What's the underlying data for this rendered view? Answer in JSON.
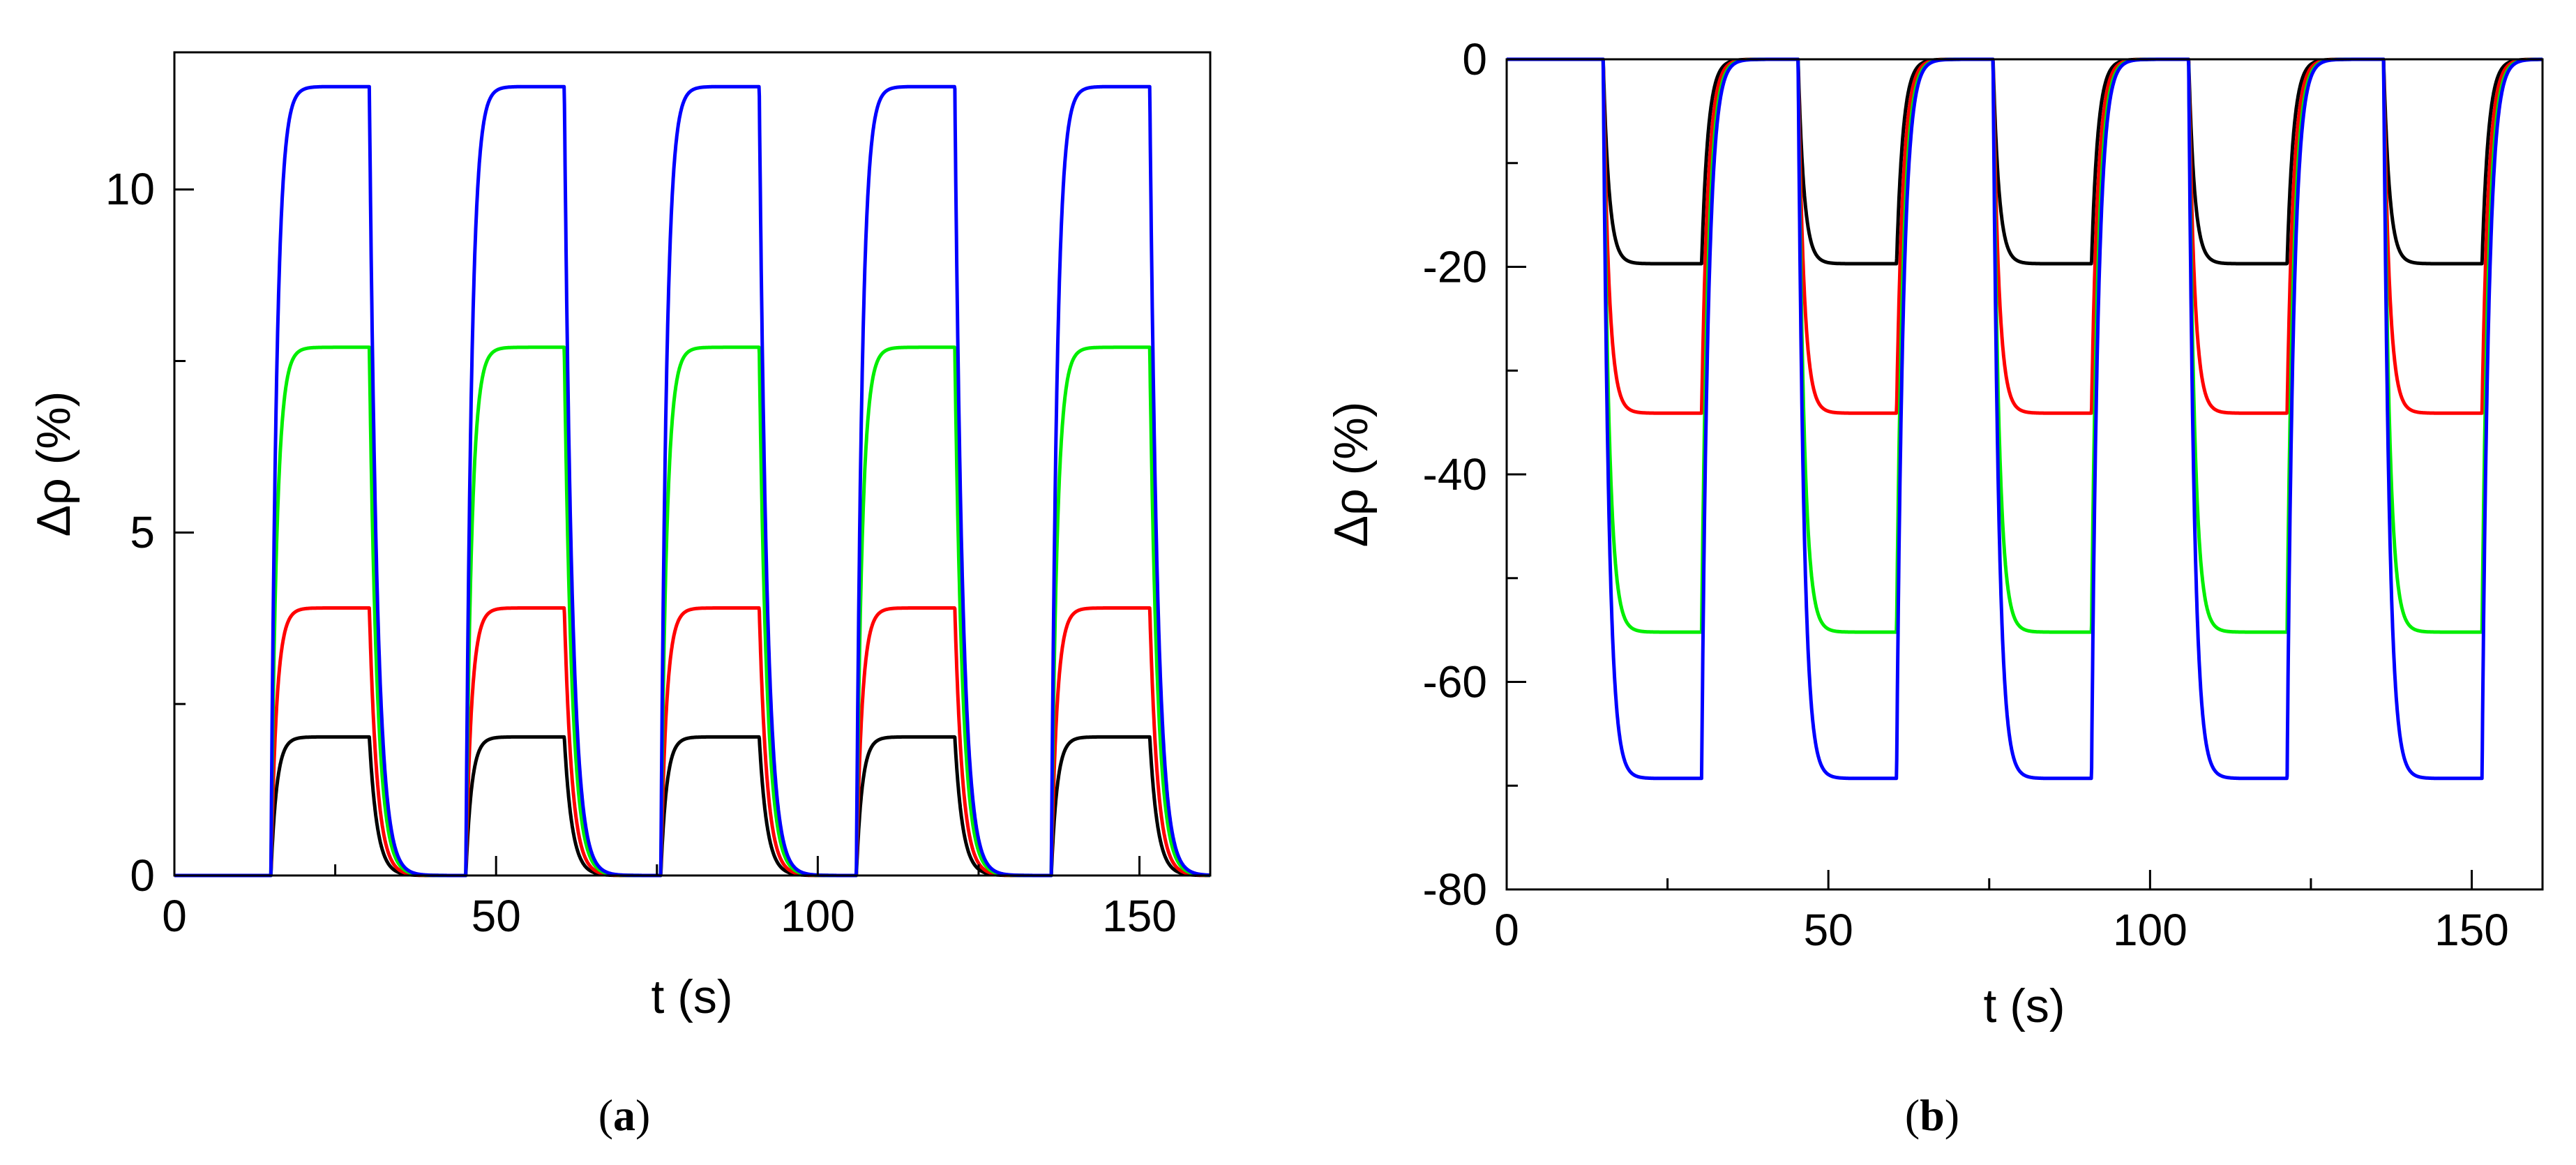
{
  "chart_data": [
    {
      "panel": "(a)",
      "panel_label_open": "(",
      "panel_label_letter": "a",
      "panel_label_close": ")",
      "type": "line",
      "xlabel": "t (s)",
      "ylabel": "Δρ (%)",
      "xlim": [
        0,
        161
      ],
      "ylim": [
        0,
        12
      ],
      "xticks": [
        0,
        50,
        100,
        150
      ],
      "xtick_labels": [
        "0",
        "50",
        "100",
        "150"
      ],
      "yticks": [
        0,
        5,
        10
      ],
      "ytick_labels": [
        "0",
        "5",
        "10"
      ],
      "pulse_on_times": [
        15,
        45.3,
        75.6,
        106,
        136.3
      ],
      "pulse_duration": 15.3,
      "rise_tau": 0.9,
      "fall_tau": 1.2,
      "series": [
        {
          "name": "black",
          "color": "#000000",
          "plateau": 2.02
        },
        {
          "name": "red",
          "color": "#ff0000",
          "plateau": 3.9
        },
        {
          "name": "green",
          "color": "#00ee00",
          "plateau": 7.7
        },
        {
          "name": "blue",
          "color": "#0000ff",
          "plateau": 11.5
        }
      ]
    },
    {
      "panel": "(b)",
      "panel_label_open": "(",
      "panel_label_letter": "b",
      "panel_label_close": ")",
      "type": "line",
      "xlabel": "t (s)",
      "ylabel": "Δρ (%)",
      "xlim": [
        0,
        161
      ],
      "ylim": [
        -80,
        0
      ],
      "xticks": [
        0,
        50,
        100,
        150
      ],
      "xtick_labels": [
        "0",
        "50",
        "100",
        "150"
      ],
      "yticks": [
        -80,
        -60,
        -40,
        -20,
        0
      ],
      "ytick_labels": [
        "-80",
        "-60",
        "-40",
        "-20",
        "0"
      ],
      "pulse_on_times": [
        15,
        45.3,
        75.6,
        106,
        136.3
      ],
      "pulse_duration": 15.3,
      "rise_tau": 0.9,
      "fall_tau": 1.0,
      "series": [
        {
          "name": "black",
          "color": "#000000",
          "plateau": -19.7
        },
        {
          "name": "red",
          "color": "#ff0000",
          "plateau": -34.1
        },
        {
          "name": "green",
          "color": "#00ee00",
          "plateau": -55.2
        },
        {
          "name": "blue",
          "color": "#0000ff",
          "plateau": -69.3
        }
      ]
    }
  ]
}
